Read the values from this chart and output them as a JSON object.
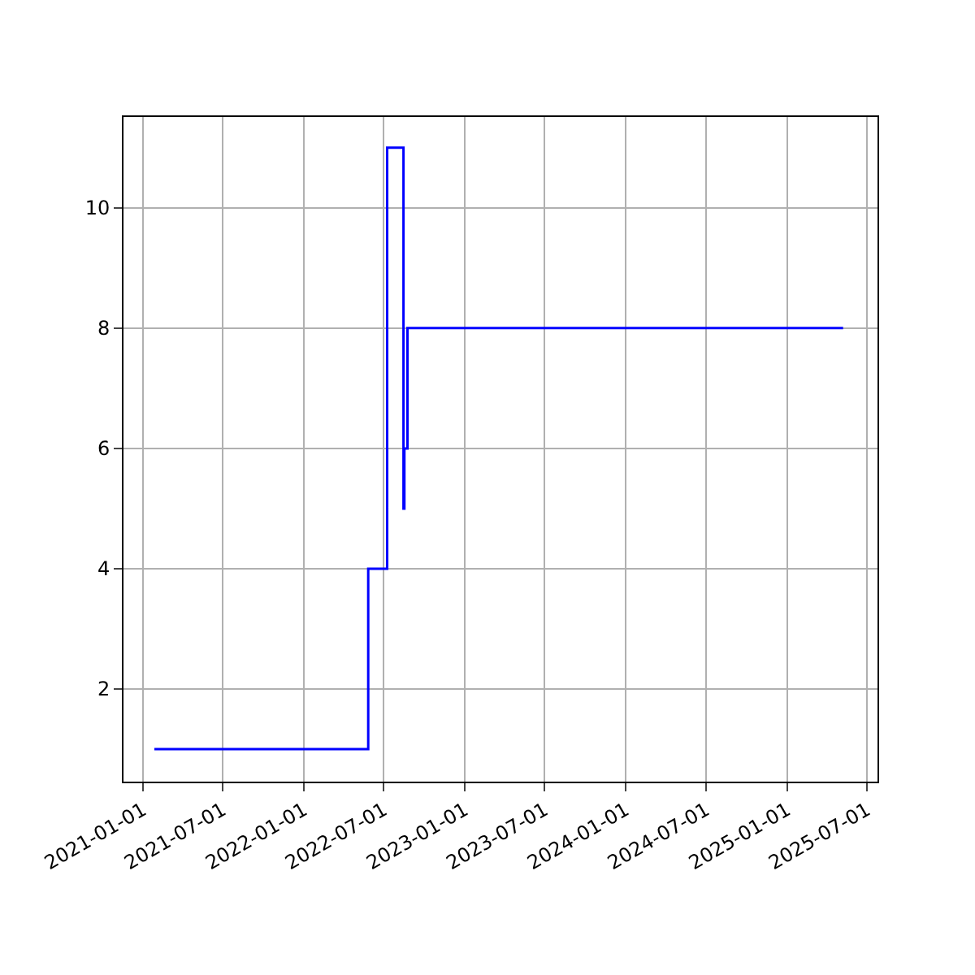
{
  "chart_data": {
    "type": "step",
    "x": [
      "2021-01-27",
      "2022-05-27",
      "2022-07-09",
      "2022-08-15",
      "2022-08-17",
      "2022-08-24",
      "2025-05-08"
    ],
    "series": [
      {
        "color": "#0000ff",
        "values": [
          1,
          4,
          11,
          5,
          6,
          8,
          8
        ]
      }
    ],
    "xlim": [
      "2020-11-18",
      "2025-07-25"
    ],
    "xticks": [
      "2021-01-01",
      "2021-07-01",
      "2022-01-01",
      "2022-07-01",
      "2023-01-01",
      "2023-07-01",
      "2024-01-01",
      "2024-07-01",
      "2025-01-01",
      "2025-07-01"
    ],
    "ylim": [
      0.46,
      11.51
    ],
    "yticks": [
      2,
      4,
      6,
      8,
      10
    ],
    "grid": true,
    "legend": false
  }
}
